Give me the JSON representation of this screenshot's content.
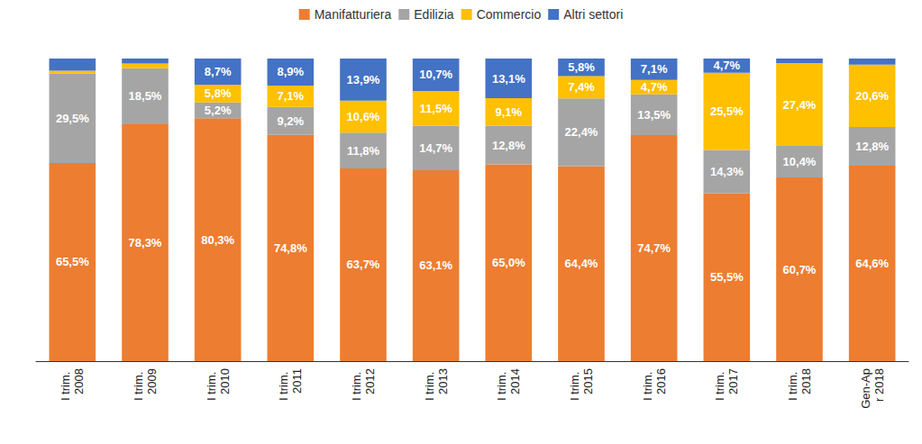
{
  "chart_data": {
    "type": "bar",
    "stacked": true,
    "data_labels": true,
    "tick_labels": "x",
    "legend": "top",
    "ylim": [
      0,
      100
    ],
    "categories": [
      "I trim. 2008",
      "I trim. 2009",
      "I trim. 2010",
      "I trim. 2011",
      "I trim. 2012",
      "I trim. 2013",
      "I trim. 2014",
      "I trim. 2015",
      "I trim. 2016",
      "I trim. 2017",
      "I trim. 2018",
      "Gen-Apr 2018"
    ],
    "series": [
      {
        "name": "Manifatturiera",
        "color": "#ED7D31",
        "values": [
          65.5,
          78.3,
          80.3,
          74.8,
          63.7,
          63.1,
          65.0,
          64.4,
          74.7,
          55.5,
          60.7,
          64.6
        ],
        "value_labels": [
          "65,5%",
          "78,3%",
          "80,3%",
          "74,8%",
          "63,7%",
          "63,1%",
          "65,0%",
          "64,4%",
          "74,7%",
          "55,5%",
          "60,7%",
          "64,6%"
        ]
      },
      {
        "name": "Edilizia",
        "color": "#A5A5A5",
        "values": [
          29.5,
          18.5,
          5.2,
          9.2,
          11.8,
          14.7,
          12.8,
          22.4,
          13.5,
          14.3,
          10.4,
          12.8
        ],
        "value_labels": [
          "29,5%",
          "18,5%",
          "5,2%",
          "9,2%",
          "11,8%",
          "14,7%",
          "12,8%",
          "22,4%",
          "13,5%",
          "14,3%",
          "10,4%",
          "12,8%"
        ]
      },
      {
        "name": "Commercio",
        "color": "#FFC000",
        "values": [
          1.0,
          1.6,
          5.8,
          7.1,
          10.6,
          11.5,
          9.1,
          7.4,
          4.7,
          25.5,
          27.4,
          20.6
        ],
        "value_labels": [
          null,
          null,
          "5,8%",
          "7,1%",
          "10,6%",
          "11,5%",
          "9,1%",
          "7,4%",
          "4,7%",
          "25,5%",
          "27,4%",
          "20,6%"
        ]
      },
      {
        "name": "Altri settori",
        "color": "#4472C4",
        "values": [
          4.0,
          1.6,
          8.7,
          8.9,
          13.9,
          10.7,
          13.1,
          5.8,
          7.1,
          4.7,
          1.5,
          2.0
        ],
        "value_labels": [
          null,
          null,
          "8,7%",
          "8,9%",
          "13,9%",
          "10,7%",
          "13,1%",
          "5,8%",
          "7,1%",
          "4,7%",
          null,
          null
        ]
      }
    ]
  }
}
